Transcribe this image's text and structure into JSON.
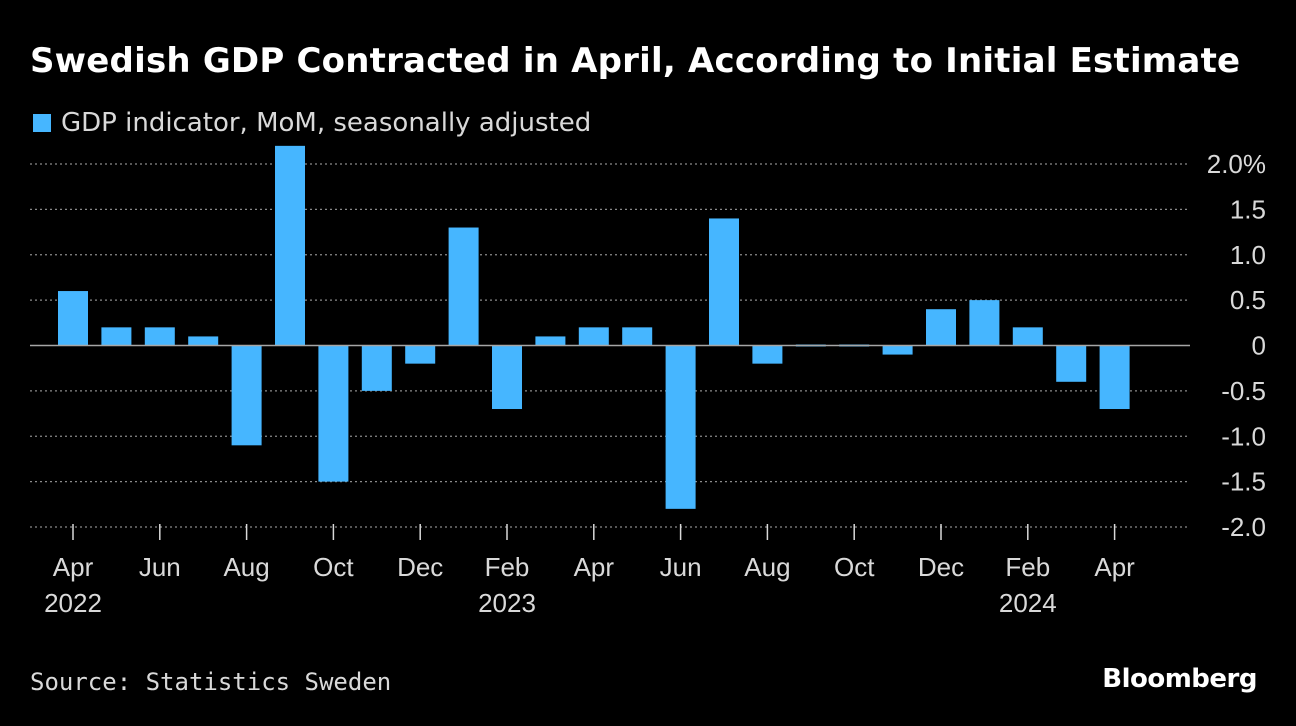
{
  "colors": {
    "bar": "#46b6ff",
    "background": "#000000",
    "grid": "#8a8a8a",
    "zero_line": "#a6a6a6",
    "text": "#d9d9d9"
  },
  "chart_data": {
    "type": "bar",
    "title": "Swedish GDP Contracted in April, According to Initial Estimate",
    "legend": [
      "GDP indicator, MoM, seasonally adjusted"
    ],
    "legend_position": "top-left",
    "series": [
      {
        "name": "GDP indicator, MoM, seasonally adjusted",
        "values": [
          0.6,
          0.2,
          0.2,
          0.1,
          -1.1,
          2.2,
          -1.5,
          -0.5,
          -0.2,
          1.3,
          -0.7,
          0.1,
          0.2,
          0.2,
          -1.8,
          1.4,
          -0.2,
          0.02,
          0.02,
          -0.1,
          0.4,
          0.5,
          0.2,
          -0.4,
          -0.7
        ]
      }
    ],
    "categories": [
      "2022-04",
      "2022-05",
      "2022-06",
      "2022-07",
      "2022-08",
      "2022-09",
      "2022-10",
      "2022-11",
      "2022-12",
      "2023-01",
      "2023-02",
      "2023-03",
      "2023-04",
      "2023-05",
      "2023-06",
      "2023-07",
      "2023-08",
      "2023-09",
      "2023-10",
      "2023-11",
      "2023-12",
      "2024-01",
      "2024-02",
      "2024-03",
      "2024-04"
    ],
    "x_tick_labels": [
      {
        "index": 0,
        "label": "Apr"
      },
      {
        "index": 2,
        "label": "Jun"
      },
      {
        "index": 4,
        "label": "Aug"
      },
      {
        "index": 6,
        "label": "Oct"
      },
      {
        "index": 8,
        "label": "Dec"
      },
      {
        "index": 10,
        "label": "Feb"
      },
      {
        "index": 12,
        "label": "Apr"
      },
      {
        "index": 14,
        "label": "Jun"
      },
      {
        "index": 16,
        "label": "Aug"
      },
      {
        "index": 18,
        "label": "Oct"
      },
      {
        "index": 20,
        "label": "Dec"
      },
      {
        "index": 22,
        "label": "Feb"
      },
      {
        "index": 24,
        "label": "Apr"
      }
    ],
    "x_year_labels": [
      {
        "index": 0,
        "label": "2022"
      },
      {
        "index": 10,
        "label": "2023"
      },
      {
        "index": 22,
        "label": "2024"
      }
    ],
    "y_ticks": [
      {
        "value": 2.0,
        "label": "2.0%"
      },
      {
        "value": 1.5,
        "label": "1.5"
      },
      {
        "value": 1.0,
        "label": "1.0"
      },
      {
        "value": 0.5,
        "label": "0.5"
      },
      {
        "value": 0,
        "label": "0"
      },
      {
        "value": -0.5,
        "label": "-0.5"
      },
      {
        "value": -1.0,
        "label": "-1.0"
      },
      {
        "value": -1.5,
        "label": "-1.5"
      },
      {
        "value": -2.0,
        "label": "-2.0"
      }
    ],
    "ylim": [
      -2.0,
      2.0
    ],
    "y_axis_side": "right",
    "grid": true,
    "xlabel": "",
    "ylabel": ""
  },
  "footer": {
    "source": "Source: Statistics Sweden",
    "brand": "Bloomberg"
  }
}
